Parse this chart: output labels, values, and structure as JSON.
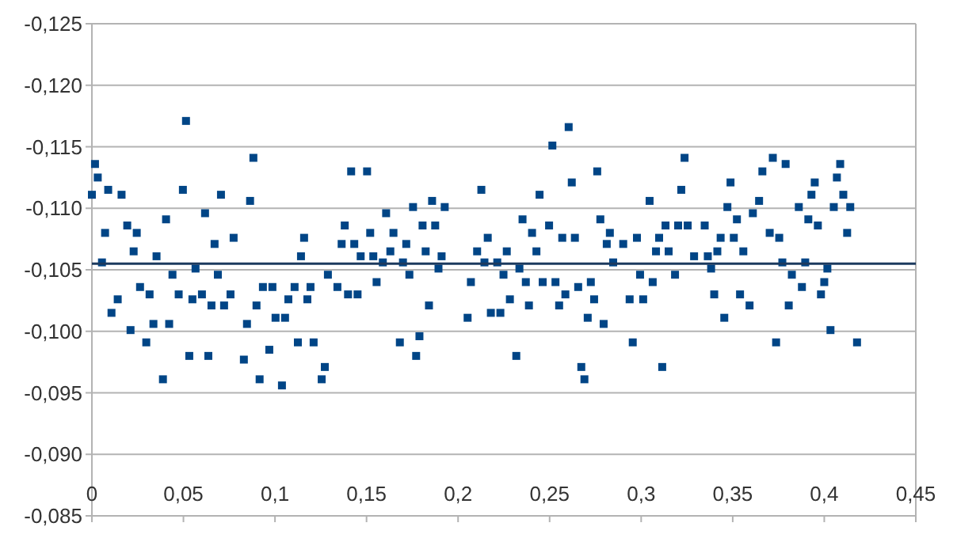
{
  "chart_data": {
    "type": "scatter",
    "marker": "square",
    "grid": "y",
    "xlim": [
      0,
      0.45
    ],
    "ylim": [
      -0.085,
      -0.125
    ],
    "xticks": [
      {
        "value": 0,
        "label": "0"
      },
      {
        "value": 0.05,
        "label": "0,05"
      },
      {
        "value": 0.1,
        "label": "0,1"
      },
      {
        "value": 0.15,
        "label": "0,15"
      },
      {
        "value": 0.2,
        "label": "0,2"
      },
      {
        "value": 0.25,
        "label": "0,25"
      },
      {
        "value": 0.3,
        "label": "0,3"
      },
      {
        "value": 0.35,
        "label": "0,35"
      },
      {
        "value": 0.4,
        "label": "0,4"
      },
      {
        "value": 0.45,
        "label": "0,45"
      }
    ],
    "yticks": [
      {
        "value": -0.125,
        "label": "-0,125"
      },
      {
        "value": -0.12,
        "label": "-0,120"
      },
      {
        "value": -0.115,
        "label": "-0,115"
      },
      {
        "value": -0.11,
        "label": "-0,110"
      },
      {
        "value": -0.105,
        "label": "-0,105"
      },
      {
        "value": -0.1,
        "label": "-0,100"
      },
      {
        "value": -0.095,
        "label": "-0,095"
      },
      {
        "value": -0.09,
        "label": "-0,090"
      },
      {
        "value": -0.085,
        "label": "-0,085"
      }
    ],
    "ref_lines": [
      {
        "axis": "y",
        "value": -0.1055,
        "color": "#1c3a5e"
      }
    ],
    "series": [
      {
        "color": "#004586",
        "x": [
          0,
          0.0017,
          0.0032,
          0.0055,
          0.0072,
          0.0089,
          0.0107,
          0.0141,
          0.0162,
          0.0193,
          0.0211,
          0.0228,
          0.0245,
          0.0263,
          0.0297,
          0.0315,
          0.0336,
          0.0353,
          0.0388,
          0.0405,
          0.0422,
          0.044,
          0.0474,
          0.0497,
          0.0514,
          0.0532,
          0.0549,
          0.0566,
          0.0601,
          0.0618,
          0.0636,
          0.0653,
          0.067,
          0.0688,
          0.0705,
          0.0722,
          0.0757,
          0.0774,
          0.083,
          0.0847,
          0.0864,
          0.0882,
          0.0899,
          0.0916,
          0.0934,
          0.0969,
          0.0986,
          0.1003,
          0.1038,
          0.1055,
          0.1073,
          0.1107,
          0.1125,
          0.1142,
          0.1159,
          0.1177,
          0.1194,
          0.1211,
          0.1255,
          0.1272,
          0.1289,
          0.1341,
          0.1364,
          0.1381,
          0.1399,
          0.1416,
          0.1433,
          0.1451,
          0.1468,
          0.1503,
          0.152,
          0.1537,
          0.1555,
          0.1589,
          0.1607,
          0.163,
          0.1647,
          0.1682,
          0.1699,
          0.1717,
          0.1734,
          0.1754,
          0.1771,
          0.1789,
          0.1806,
          0.1823,
          0.1841,
          0.1858,
          0.1875,
          0.1893,
          0.191,
          0.1927,
          0.2052,
          0.207,
          0.2104,
          0.2127,
          0.2144,
          0.2162,
          0.2179,
          0.2214,
          0.2231,
          0.2248,
          0.2266,
          0.2283,
          0.2318,
          0.2335,
          0.2352,
          0.237,
          0.2387,
          0.2404,
          0.2428,
          0.2445,
          0.2462,
          0.2497,
          0.2515,
          0.2532,
          0.2552,
          0.2569,
          0.2586,
          0.2604,
          0.2621,
          0.2638,
          0.2656,
          0.2673,
          0.269,
          0.2708,
          0.2725,
          0.2743,
          0.276,
          0.2777,
          0.2795,
          0.2812,
          0.2829,
          0.2847,
          0.2902,
          0.2937,
          0.2954,
          0.2977,
          0.2994,
          0.3011,
          0.3046,
          0.3063,
          0.3081,
          0.3098,
          0.3115,
          0.3133,
          0.315,
          0.3185,
          0.3202,
          0.3219,
          0.3237,
          0.3254,
          0.3289,
          0.3347,
          0.3364,
          0.3382,
          0.3399,
          0.3416,
          0.3434,
          0.3454,
          0.3471,
          0.3488,
          0.3506,
          0.3523,
          0.354,
          0.3558,
          0.3592,
          0.361,
          0.3644,
          0.3662,
          0.3702,
          0.3719,
          0.3737,
          0.3754,
          0.3771,
          0.3789,
          0.3806,
          0.3823,
          0.3861,
          0.3878,
          0.3896,
          0.3913,
          0.393,
          0.3948,
          0.3965,
          0.3982,
          0.4,
          0.4017,
          0.4034,
          0.4052,
          0.4069,
          0.4087,
          0.4104,
          0.4125,
          0.4142,
          0.4179
        ],
        "values": [
          -0.1111,
          -0.1136,
          -0.1125,
          -0.1056,
          -0.108,
          -0.1115,
          -0.1015,
          -0.1026,
          -0.1111,
          -0.1086,
          -0.1001,
          -0.1065,
          -0.108,
          -0.1036,
          -0.0991,
          -0.103,
          -0.1006,
          -0.1061,
          -0.0961,
          -0.1091,
          -0.1006,
          -0.1046,
          -0.103,
          -0.1115,
          -0.1171,
          -0.098,
          -0.1026,
          -0.1051,
          -0.103,
          -0.1096,
          -0.098,
          -0.1021,
          -0.1071,
          -0.1046,
          -0.1111,
          -0.1021,
          -0.103,
          -0.1076,
          -0.0977,
          -0.1006,
          -0.1106,
          -0.1141,
          -0.1021,
          -0.0961,
          -0.1036,
          -0.0985,
          -0.1036,
          -0.1011,
          -0.0956,
          -0.1011,
          -0.1026,
          -0.1036,
          -0.0991,
          -0.1061,
          -0.1076,
          -0.1026,
          -0.1036,
          -0.0991,
          -0.0961,
          -0.0971,
          -0.1046,
          -0.1036,
          -0.1071,
          -0.1086,
          -0.103,
          -0.113,
          -0.1071,
          -0.103,
          -0.1061,
          -0.113,
          -0.108,
          -0.1061,
          -0.104,
          -0.1056,
          -0.1096,
          -0.1065,
          -0.108,
          -0.0991,
          -0.1056,
          -0.1071,
          -0.1046,
          -0.1101,
          -0.098,
          -0.0996,
          -0.1086,
          -0.1065,
          -0.1021,
          -0.1106,
          -0.1086,
          -0.1051,
          -0.1061,
          -0.1101,
          -0.1011,
          -0.104,
          -0.1065,
          -0.1115,
          -0.1056,
          -0.1076,
          -0.1015,
          -0.1056,
          -0.1015,
          -0.1046,
          -0.1065,
          -0.1026,
          -0.098,
          -0.1051,
          -0.1091,
          -0.104,
          -0.1021,
          -0.108,
          -0.1065,
          -0.1111,
          -0.104,
          -0.1086,
          -0.1151,
          -0.104,
          -0.1021,
          -0.1076,
          -0.103,
          -0.1166,
          -0.1121,
          -0.1076,
          -0.1036,
          -0.0971,
          -0.0961,
          -0.1011,
          -0.104,
          -0.1026,
          -0.113,
          -0.1091,
          -0.1006,
          -0.1071,
          -0.108,
          -0.1056,
          -0.1071,
          -0.1026,
          -0.0991,
          -0.1076,
          -0.1046,
          -0.1026,
          -0.1106,
          -0.104,
          -0.1065,
          -0.1076,
          -0.0971,
          -0.1086,
          -0.1065,
          -0.1046,
          -0.1086,
          -0.1115,
          -0.1141,
          -0.1086,
          -0.1061,
          -0.1086,
          -0.1061,
          -0.1051,
          -0.103,
          -0.1065,
          -0.1076,
          -0.1011,
          -0.1101,
          -0.1121,
          -0.1076,
          -0.1091,
          -0.103,
          -0.1065,
          -0.1021,
          -0.1096,
          -0.1106,
          -0.113,
          -0.108,
          -0.1141,
          -0.0991,
          -0.1076,
          -0.1056,
          -0.1136,
          -0.1021,
          -0.1046,
          -0.1101,
          -0.1036,
          -0.1056,
          -0.1091,
          -0.1111,
          -0.1121,
          -0.1086,
          -0.103,
          -0.104,
          -0.1051,
          -0.1001,
          -0.1101,
          -0.1125,
          -0.1136,
          -0.1111,
          -0.108,
          -0.1101,
          -0.0991
        ]
      }
    ]
  }
}
